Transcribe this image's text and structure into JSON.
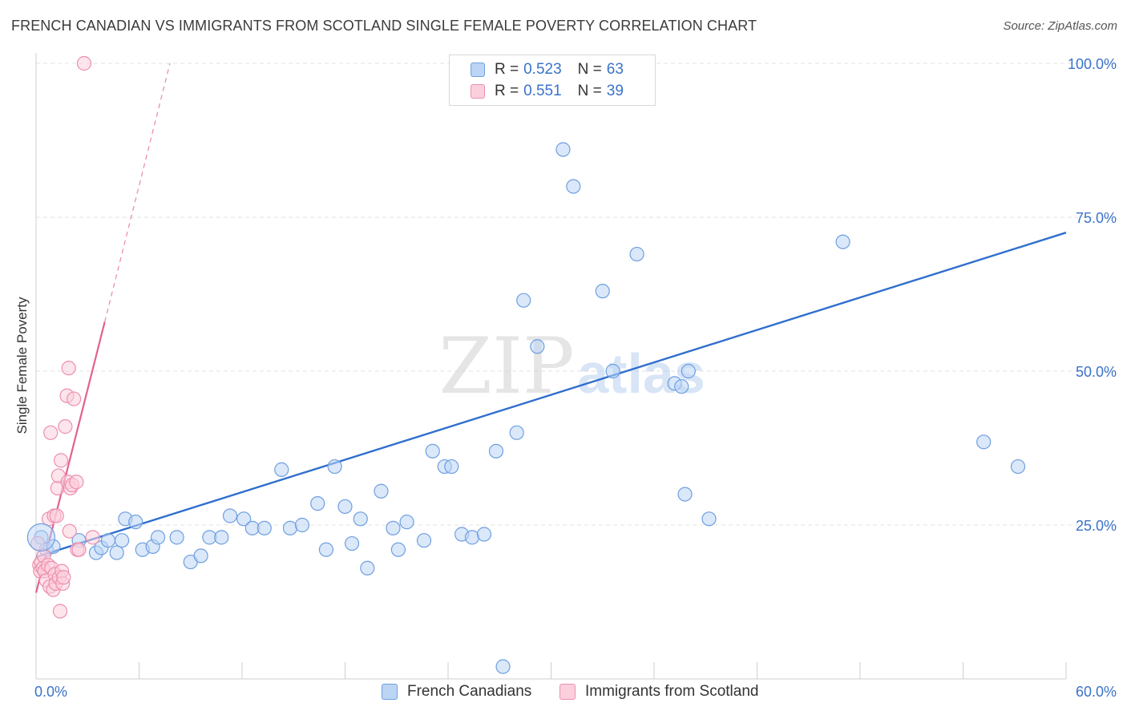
{
  "title": "FRENCH CANADIAN VS IMMIGRANTS FROM SCOTLAND SINGLE FEMALE POVERTY CORRELATION CHART",
  "source": "Source: ZipAtlas.com",
  "watermark": {
    "zip": "ZIP",
    "atlas": "atlas"
  },
  "legend": {
    "rows": [
      {
        "r_label": "R =",
        "r_value": "0.523",
        "n_label": "N =",
        "n_value": "63",
        "color": "#a9c8f0",
        "border": "#6f9fe0"
      },
      {
        "r_label": "R =",
        "r_value": "0.551",
        "n_label": "N =",
        "n_value": "39",
        "color": "#f7c0d0",
        "border": "#ec8fae"
      }
    ]
  },
  "bottom_legend": [
    {
      "label": "French Canadians",
      "color": "#bcd5f5",
      "border": "#6f9fe0"
    },
    {
      "label": "Immigrants from Scotland",
      "color": "#fbd0dc",
      "border": "#ec8fae"
    }
  ],
  "chart_data": {
    "type": "scatter",
    "title": "FRENCH CANADIAN VS IMMIGRANTS FROM SCOTLAND SINGLE FEMALE POVERTY CORRELATION CHART",
    "xlabel": "",
    "ylabel": "Single Female Poverty",
    "xlim": [
      0,
      60
    ],
    "ylim": [
      0,
      100
    ],
    "x_tick_labels": [
      "0.0%",
      "60.0%"
    ],
    "y_tick_labels": [
      "25.0%",
      "50.0%",
      "75.0%",
      "100.0%"
    ],
    "y_ticks": [
      25,
      50,
      75,
      100
    ],
    "grid": true,
    "series": [
      {
        "name": "French Canadians",
        "color": "#6f9fe0",
        "fill": "#bcd5f5",
        "points": [
          [
            0.3,
            23.0
          ],
          [
            0.6,
            21.0
          ],
          [
            1.0,
            21.5
          ],
          [
            2.5,
            22.5
          ],
          [
            3.5,
            20.5
          ],
          [
            3.8,
            21.3
          ],
          [
            4.2,
            22.5
          ],
          [
            4.7,
            20.5
          ],
          [
            5.0,
            22.5
          ],
          [
            5.2,
            26.0
          ],
          [
            5.8,
            25.5
          ],
          [
            6.2,
            21.0
          ],
          [
            6.8,
            21.5
          ],
          [
            7.1,
            23.0
          ],
          [
            8.2,
            23.0
          ],
          [
            9.0,
            19.0
          ],
          [
            9.6,
            20.0
          ],
          [
            10.1,
            23.0
          ],
          [
            10.8,
            23.0
          ],
          [
            11.3,
            26.5
          ],
          [
            12.1,
            26.0
          ],
          [
            12.6,
            24.5
          ],
          [
            13.3,
            24.5
          ],
          [
            14.3,
            34.0
          ],
          [
            14.8,
            24.5
          ],
          [
            15.5,
            25.0
          ],
          [
            16.4,
            28.5
          ],
          [
            16.9,
            21.0
          ],
          [
            17.4,
            34.5
          ],
          [
            18.0,
            28.0
          ],
          [
            18.4,
            22.0
          ],
          [
            18.9,
            26.0
          ],
          [
            19.3,
            18.0
          ],
          [
            20.1,
            30.5
          ],
          [
            20.8,
            24.5
          ],
          [
            21.1,
            21.0
          ],
          [
            21.6,
            25.5
          ],
          [
            22.6,
            22.5
          ],
          [
            23.1,
            37.0
          ],
          [
            23.8,
            34.5
          ],
          [
            24.2,
            34.5
          ],
          [
            24.8,
            23.5
          ],
          [
            25.4,
            23.0
          ],
          [
            26.1,
            23.5
          ],
          [
            26.8,
            37.0
          ],
          [
            27.2,
            2.0
          ],
          [
            28.0,
            40.0
          ],
          [
            28.4,
            61.5
          ],
          [
            29.2,
            54.0
          ],
          [
            30.7,
            86.0
          ],
          [
            31.3,
            80.0
          ],
          [
            33.0,
            63.0
          ],
          [
            33.6,
            50.0
          ],
          [
            35.0,
            69.0
          ],
          [
            37.2,
            48.0
          ],
          [
            37.6,
            47.5
          ],
          [
            37.8,
            30.0
          ],
          [
            38.0,
            50.0
          ],
          [
            39.2,
            26.0
          ],
          [
            47.0,
            71.0
          ],
          [
            55.2,
            38.5
          ],
          [
            57.2,
            34.5
          ],
          [
            28.2,
            100.0
          ]
        ],
        "trend": {
          "x": [
            0,
            60
          ],
          "y": [
            19.8,
            72.5
          ]
        }
      },
      {
        "name": "Immigrants from Scotland",
        "color": "#ec8fae",
        "fill": "#fbd0dc",
        "points": [
          [
            0.1,
            22.0
          ],
          [
            0.2,
            18.5
          ],
          [
            0.25,
            17.5
          ],
          [
            0.3,
            19.0
          ],
          [
            0.4,
            18.0
          ],
          [
            0.45,
            20.0
          ],
          [
            0.5,
            17.5
          ],
          [
            0.6,
            16.0
          ],
          [
            0.7,
            18.5
          ],
          [
            0.75,
            26.0
          ],
          [
            0.8,
            15.0
          ],
          [
            0.85,
            40.0
          ],
          [
            0.9,
            18.0
          ],
          [
            1.0,
            14.5
          ],
          [
            1.05,
            26.5
          ],
          [
            1.1,
            17.0
          ],
          [
            1.15,
            15.5
          ],
          [
            1.2,
            26.5
          ],
          [
            1.25,
            31.0
          ],
          [
            1.3,
            33.0
          ],
          [
            1.35,
            16.5
          ],
          [
            1.4,
            11.0
          ],
          [
            1.45,
            35.5
          ],
          [
            1.5,
            17.5
          ],
          [
            1.55,
            15.5
          ],
          [
            1.6,
            16.5
          ],
          [
            1.7,
            41.0
          ],
          [
            1.8,
            46.0
          ],
          [
            1.85,
            32.0
          ],
          [
            1.9,
            50.5
          ],
          [
            1.95,
            24.0
          ],
          [
            2.0,
            31.0
          ],
          [
            2.1,
            31.5
          ],
          [
            2.2,
            45.5
          ],
          [
            2.35,
            32.0
          ],
          [
            2.4,
            21.0
          ],
          [
            2.5,
            21.0
          ],
          [
            3.3,
            23.0
          ],
          [
            2.8,
            100.0
          ]
        ],
        "trend": {
          "x": [
            0,
            4.0
          ],
          "y": [
            14.0,
            58.0
          ]
        },
        "trend_dashed": {
          "x": [
            4.0,
            7.8
          ],
          "y": [
            58.0,
            100.0
          ]
        }
      }
    ]
  }
}
